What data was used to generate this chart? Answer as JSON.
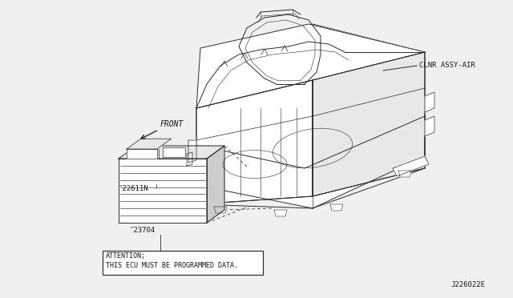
{
  "bg_color": "#f0f0f0",
  "line_color": "#2a2a2a",
  "label_clnr": "CLNR ASSY-AIR",
  "label_front": "FRONT",
  "label_22611n": "‶22611N",
  "label_23704": "‶23704",
  "attention_line1": "ATTENTION;",
  "attention_line2": "THIS ECU MUST BE PROGRAMMED DATA.",
  "diagram_id": "J226022E",
  "font_color": "#1a1a1a",
  "white": "#ffffff",
  "gray_light": "#e8e8e8",
  "gray_mid": "#cccccc"
}
